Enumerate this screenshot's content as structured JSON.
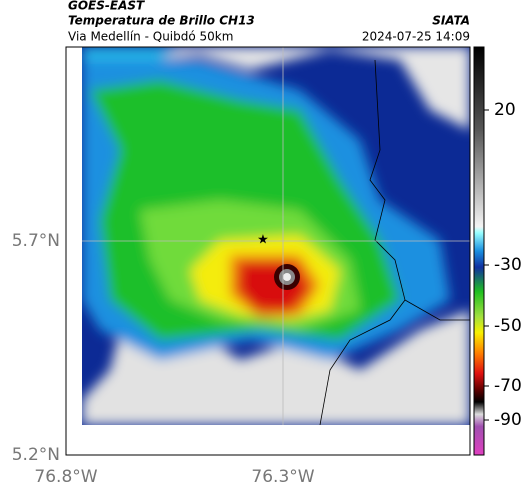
{
  "header": {
    "satellite": "GOES-EAST",
    "product": "Temperatura de Brillo CH13",
    "org": "SIATA",
    "region": "Via Medellín - Quibdó 50km",
    "datetime": "2024-07-25 14:09"
  },
  "axes": {
    "lat_ticks": [
      "5.7°N",
      "5.2°N"
    ],
    "lon_ticks": [
      "76.8°W",
      "76.3°W"
    ]
  },
  "colorbar": {
    "ticks": [
      20,
      -30,
      -50,
      -70,
      -90
    ]
  }
}
